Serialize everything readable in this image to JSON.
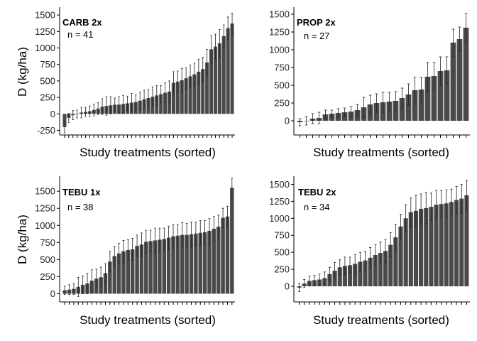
{
  "chart_data": [
    {
      "type": "bar",
      "title": "CARB 2x",
      "annotation": "n = 41",
      "xlabel": "Study treatments (sorted)",
      "ylabel": "D (kg/ha)",
      "ylim": [
        -320,
        1620
      ],
      "yticks": [
        -250,
        0,
        250,
        500,
        750,
        1000,
        1250,
        1500
      ],
      "values": [
        -200,
        -60,
        -20,
        0,
        20,
        30,
        40,
        60,
        80,
        110,
        120,
        130,
        140,
        140,
        150,
        160,
        170,
        180,
        200,
        220,
        240,
        260,
        280,
        300,
        320,
        340,
        470,
        490,
        510,
        540,
        570,
        600,
        640,
        680,
        780,
        980,
        1020,
        1070,
        1180,
        1300,
        1370
      ],
      "errors": [
        90,
        70,
        70,
        60,
        80,
        70,
        80,
        90,
        90,
        120,
        140,
        130,
        100,
        120,
        130,
        110,
        140,
        120,
        130,
        140,
        130,
        150,
        150,
        130,
        150,
        160,
        170,
        160,
        180,
        160,
        170,
        170,
        190,
        180,
        200,
        210,
        190,
        210,
        170,
        170,
        160
      ]
    },
    {
      "type": "bar",
      "title": "PROP 2x",
      "annotation": "n = 27",
      "xlabel": "Study treatments (sorted)",
      "ylabel": "",
      "ylim": [
        -200,
        1600
      ],
      "yticks": [
        0,
        250,
        500,
        750,
        1000,
        1250,
        1500
      ],
      "values": [
        -20,
        0,
        30,
        40,
        90,
        100,
        110,
        120,
        130,
        150,
        190,
        230,
        250,
        260,
        270,
        280,
        320,
        370,
        430,
        440,
        620,
        630,
        700,
        710,
        1100,
        1150,
        1310
      ],
      "errors": [
        50,
        60,
        70,
        80,
        60,
        50,
        60,
        60,
        70,
        80,
        140,
        130,
        130,
        140,
        130,
        130,
        140,
        150,
        180,
        170,
        200,
        190,
        200,
        190,
        190,
        170,
        200
      ]
    },
    {
      "type": "bar",
      "title": "TEBU 1x",
      "annotation": "n = 38",
      "xlabel": "Study treatments (sorted)",
      "ylabel": "D (kg/ha)",
      "ylim": [
        -120,
        1720
      ],
      "yticks": [
        0,
        250,
        500,
        750,
        1000,
        1250,
        1500
      ],
      "values": [
        50,
        60,
        70,
        100,
        130,
        150,
        190,
        220,
        240,
        300,
        470,
        550,
        590,
        620,
        640,
        650,
        700,
        720,
        760,
        770,
        780,
        790,
        800,
        820,
        840,
        850,
        860,
        860,
        870,
        880,
        890,
        900,
        920,
        950,
        980,
        1110,
        1130,
        1550
      ],
      "errors": [
        60,
        70,
        80,
        140,
        130,
        150,
        160,
        140,
        150,
        140,
        150,
        140,
        150,
        160,
        150,
        160,
        160,
        170,
        170,
        160,
        180,
        170,
        160,
        170,
        170,
        160,
        180,
        170,
        180,
        170,
        180,
        170,
        180,
        180,
        170,
        140,
        150,
        140
      ]
    },
    {
      "type": "bar",
      "title": "TEBU 2x",
      "annotation": "n = 34",
      "xlabel": "Study treatments (sorted)",
      "ylabel": "",
      "ylim": [
        -230,
        1620
      ],
      "yticks": [
        0,
        250,
        500,
        750,
        1000,
        1250,
        1500
      ],
      "values": [
        -20,
        40,
        80,
        90,
        100,
        120,
        180,
        230,
        280,
        300,
        310,
        330,
        360,
        380,
        420,
        460,
        490,
        520,
        610,
        720,
        880,
        1000,
        1090,
        1110,
        1140,
        1150,
        1170,
        1200,
        1210,
        1220,
        1240,
        1270,
        1290,
        1340
      ],
      "errors": [
        60,
        60,
        70,
        70,
        80,
        90,
        100,
        120,
        110,
        130,
        120,
        140,
        140,
        130,
        150,
        150,
        160,
        170,
        180,
        190,
        180,
        200,
        210,
        230,
        220,
        230,
        200,
        210,
        200,
        200,
        190,
        200,
        210,
        220
      ]
    }
  ]
}
